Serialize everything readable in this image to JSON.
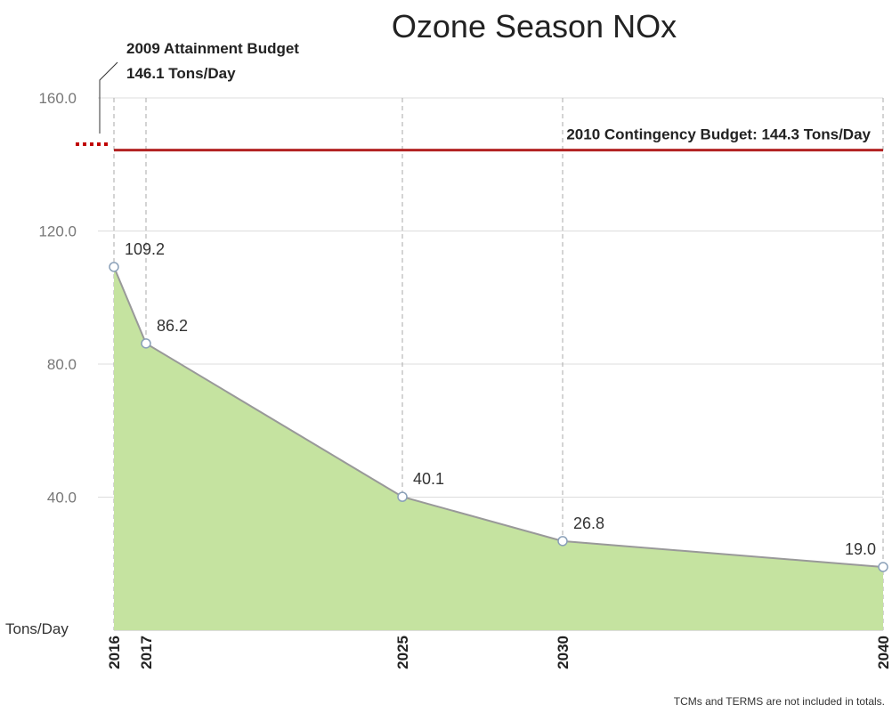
{
  "chart_data": {
    "type": "area",
    "title": "Ozone Season NOx",
    "y_label": "Tons/Day",
    "footnote": "TCMs and TERMS are not included in totals.",
    "x": [
      2016,
      2017,
      2025,
      2030,
      2040
    ],
    "series": [
      {
        "name": null,
        "color": "#c5e3a0",
        "values": [
          109.2,
          86.2,
          40.1,
          26.8,
          19.0
        ],
        "value_labels": [
          "109.2",
          "86.2",
          "40.1",
          "26.8",
          "19.0"
        ]
      }
    ],
    "xlim": [
      2016,
      2040
    ],
    "xticks": [
      2016,
      2017,
      2025,
      2030,
      2040
    ],
    "ylim": [
      0,
      160
    ],
    "yticks": [
      {
        "value": 40,
        "label": "40.0"
      },
      {
        "value": 80,
        "label": "80.0"
      },
      {
        "value": 120,
        "label": "120.0"
      },
      {
        "value": 160,
        "label": "160.0"
      }
    ],
    "grid": true,
    "reference_lines": [
      {
        "value": 146.1,
        "label_lines": [
          "2009 Attainment Budget",
          "146.1 Tons/Day"
        ],
        "color": "#c00000",
        "style": "dotted"
      },
      {
        "value": 144.3,
        "label": "2010 Contingency Budget: 144.3 Tons/Day",
        "color": "#b22222",
        "style": "solid"
      }
    ]
  }
}
